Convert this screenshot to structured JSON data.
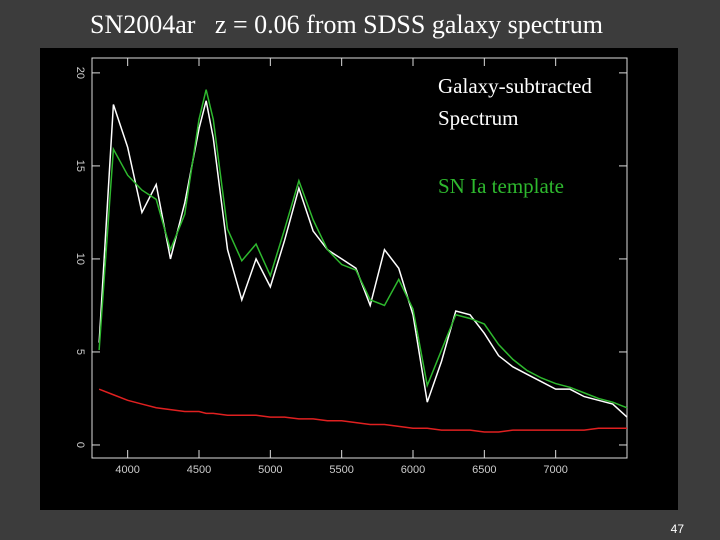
{
  "title": "SN2004ar   z = 0.06 from SDSS galaxy spectrum",
  "page_number": "47",
  "chart_data": {
    "type": "line",
    "x": [
      3800,
      3900,
      4000,
      4100,
      4200,
      4300,
      4400,
      4500,
      4550,
      4600,
      4700,
      4800,
      4900,
      5000,
      5100,
      5200,
      5300,
      5400,
      5500,
      5600,
      5700,
      5800,
      5900,
      6000,
      6100,
      6200,
      6300,
      6400,
      6500,
      6600,
      6700,
      6800,
      6900,
      7000,
      7100,
      7200,
      7300,
      7400,
      7500
    ],
    "series": [
      {
        "name": "Galaxy-subtracted Spectrum",
        "color": "#ffffff",
        "values": [
          5.5,
          18.3,
          16.0,
          12.5,
          14.0,
          10.0,
          13.0,
          17.0,
          18.5,
          16.5,
          10.5,
          7.8,
          10.0,
          8.5,
          11.0,
          13.8,
          11.5,
          10.5,
          10.0,
          9.5,
          7.5,
          10.5,
          9.5,
          7.0,
          2.3,
          4.5,
          7.2,
          7.0,
          6.0,
          4.8,
          4.2,
          3.8,
          3.4,
          3.0,
          3.0,
          2.6,
          2.4,
          2.2,
          1.5
        ]
      },
      {
        "name": "SN Ia template",
        "color": "#2eb82e",
        "values": [
          5.1,
          15.9,
          14.5,
          13.7,
          13.2,
          10.5,
          12.4,
          17.5,
          19.1,
          17.5,
          11.6,
          9.9,
          10.8,
          9.1,
          11.6,
          14.2,
          12.1,
          10.5,
          9.7,
          9.4,
          7.8,
          7.5,
          8.9,
          7.3,
          3.2,
          5.1,
          7.0,
          6.8,
          6.5,
          5.4,
          4.6,
          4.0,
          3.6,
          3.3,
          3.1,
          2.8,
          2.5,
          2.3,
          2.0
        ]
      },
      {
        "color": "#e02020",
        "values": [
          3.0,
          2.7,
          2.4,
          2.2,
          2.0,
          1.9,
          1.8,
          1.8,
          1.7,
          1.7,
          1.6,
          1.6,
          1.6,
          1.5,
          1.5,
          1.4,
          1.4,
          1.3,
          1.3,
          1.2,
          1.1,
          1.1,
          1.0,
          0.9,
          0.9,
          0.8,
          0.8,
          0.8,
          0.7,
          0.7,
          0.8,
          0.8,
          0.8,
          0.8,
          0.8,
          0.8,
          0.9,
          0.9,
          0.9
        ]
      }
    ],
    "xlim": [
      3750,
      7500
    ],
    "xticks": [
      4000,
      4500,
      5000,
      5500,
      6000,
      6500,
      7000
    ],
    "ylim": [
      -0.7,
      20.8
    ],
    "yticks": [
      0,
      5,
      10,
      15,
      20
    ]
  }
}
